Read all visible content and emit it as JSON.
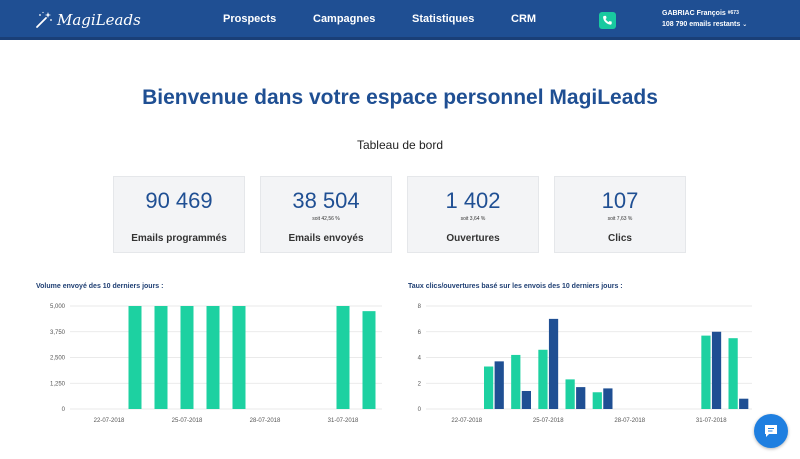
{
  "header": {
    "logo_text": "MagiLeads",
    "nav": [
      {
        "label": "Prospects"
      },
      {
        "label": "Campagnes"
      },
      {
        "label": "Statistiques"
      },
      {
        "label": "CRM"
      }
    ],
    "user": {
      "name": "GABRIAC François",
      "id": "#673",
      "emails_remaining": "108 790 emails restants"
    },
    "bar_color": "#1f4f93",
    "phone_icon_color": "#19c9a0"
  },
  "welcome_title": "Bienvenue dans votre espace personnel MagiLeads",
  "subtitle": "Tableau de bord",
  "cards": [
    {
      "value": "90 469",
      "pct": "",
      "label": "Emails programmés"
    },
    {
      "value": "38 504",
      "pct": "soit 42,56 %",
      "label": "Emails envoyés"
    },
    {
      "value": "1 402",
      "pct": "soit 3,64 %",
      "label": "Ouvertures"
    },
    {
      "value": "107",
      "pct": "soit 7,63 %",
      "label": "Clics"
    }
  ],
  "chart_data": [
    {
      "type": "bar",
      "title": "Volume envoyé des 10 derniers jours :",
      "xlabel": "",
      "ylabel": "",
      "x_ticks": [
        "22-07-2018",
        "25-07-2018",
        "28-07-2018",
        "31-07-2018"
      ],
      "y_ticks": [
        "0",
        "1,250",
        "2,500",
        "3,750",
        "5,000"
      ],
      "ylim": [
        0,
        5000
      ],
      "grid": true,
      "legend": "none",
      "series": [
        {
          "color": "#1dd1a1",
          "values": [
            0,
            0,
            5000,
            5000,
            5000,
            5000,
            5000,
            0,
            0,
            0,
            5000,
            4750
          ]
        }
      ]
    },
    {
      "type": "bar",
      "title": "Taux clics/ouvertures basé sur les envois des 10 derniers jours :",
      "xlabel": "",
      "ylabel": "",
      "x_ticks": [
        "22-07-2018",
        "25-07-2018",
        "28-07-2018",
        "31-07-2018"
      ],
      "y_ticks": [
        "0",
        "2",
        "4",
        "6",
        "8"
      ],
      "ylim": [
        0,
        8
      ],
      "grid": true,
      "legend": "none",
      "series": [
        {
          "color": "#1dd1a1",
          "values": [
            0,
            0,
            3.3,
            4.2,
            4.6,
            2.3,
            1.3,
            0,
            0,
            0,
            5.7,
            5.5
          ]
        },
        {
          "color": "#1f4f93",
          "values": [
            0,
            0,
            3.7,
            1.4,
            7.0,
            1.7,
            1.6,
            0,
            0,
            0,
            6.0,
            0.8
          ]
        }
      ]
    }
  ]
}
